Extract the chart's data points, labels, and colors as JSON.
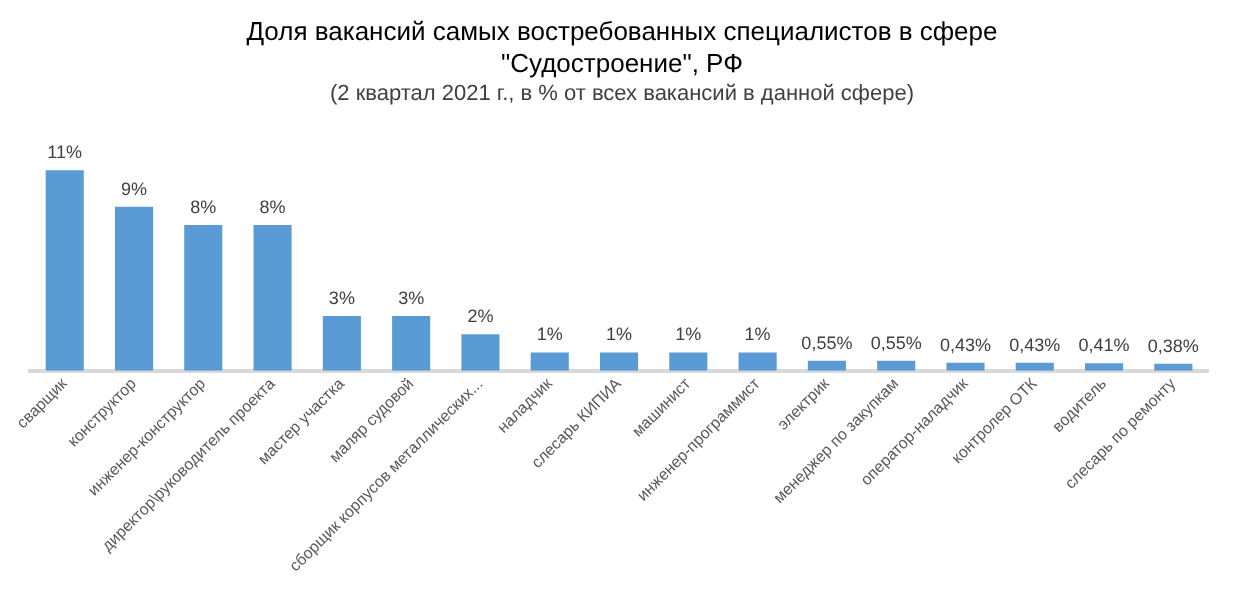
{
  "chart_data": {
    "type": "bar",
    "title": "Доля вакансий самых востребованных специалистов в сфере \"Судостроение\", РФ",
    "subtitle": "(2 квартал 2021 г., в % от всех вакансий в данной сфере)",
    "categories": [
      "сварщик",
      "конструктор",
      "инженер-конструктор",
      "директор\\руководитель проекта",
      "мастер участка",
      "маляр судовой",
      "сборщик корпусов металлических...",
      "наладчик",
      "слесарь КИПИА",
      "машинист",
      "инженер-программист",
      "электрик",
      "менеджер по закупкам",
      "оператор-наладчик",
      "контролер ОТК",
      "водитель",
      "слесарь по ремонту"
    ],
    "values": [
      11,
      9,
      8,
      8,
      3,
      3,
      2,
      1,
      1,
      1,
      1,
      0.55,
      0.55,
      0.43,
      0.43,
      0.41,
      0.38
    ],
    "value_labels": [
      "11%",
      "9%",
      "8%",
      "8%",
      "3%",
      "3%",
      "2%",
      "1%",
      "1%",
      "1%",
      "1%",
      "0,55%",
      "0,55%",
      "0,43%",
      "0,43%",
      "0,41%",
      "0,38%"
    ],
    "color": "#5b9bd5",
    "grid": false,
    "legend": false
  }
}
